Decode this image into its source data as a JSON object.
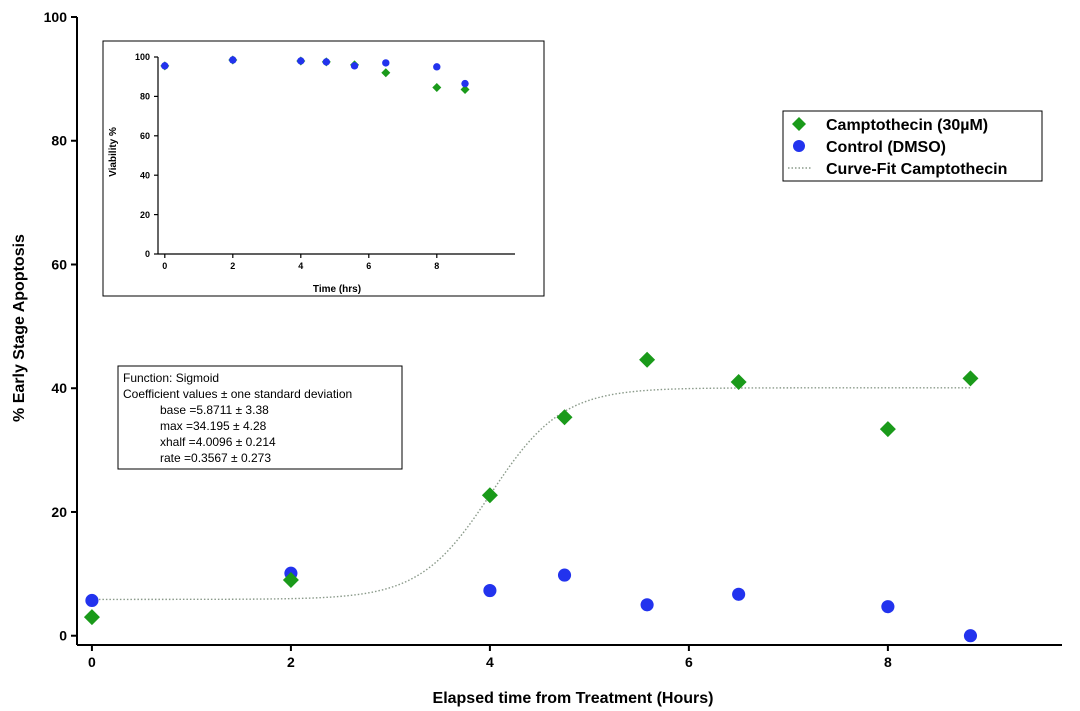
{
  "chart_data": [
    {
      "type": "scatter",
      "xlabel": "Elapsed time from Treatment (Hours)",
      "ylabel": "% Early Stage Apoptosis",
      "xlim": [
        -0.15,
        9.75
      ],
      "ylim": [
        -1.5,
        100
      ],
      "x_ticks": [
        0,
        2,
        4,
        6,
        8
      ],
      "y_ticks": [
        0,
        20,
        40,
        60,
        80,
        100
      ],
      "grid": false,
      "legend_position": "top-right",
      "series": [
        {
          "name": "Camptothecin (30µM)",
          "marker": "diamond",
          "color": "#1a9a1a",
          "x": [
            0,
            2,
            4,
            4.75,
            5.58,
            6.5,
            8,
            8.83
          ],
          "y": [
            3.0,
            9.0,
            22.7,
            35.3,
            44.6,
            41.0,
            33.4,
            41.6
          ]
        },
        {
          "name": "Control (DMSO)",
          "marker": "circle",
          "color": "#2233ee",
          "x": [
            0,
            2,
            4,
            4.75,
            5.58,
            6.5,
            8,
            8.83
          ],
          "y": [
            5.7,
            10.1,
            7.3,
            9.8,
            5.0,
            6.7,
            4.7,
            0
          ]
        },
        {
          "name": "Curve-Fit Camptothecin",
          "type": "line",
          "style": "dotted",
          "color": "#8a9a8a",
          "function": "sigmoid",
          "params": {
            "base": 5.8711,
            "max": 34.195,
            "xhalf": 4.0096,
            "rate": 0.3567
          },
          "x_range": [
            0,
            8.83
          ]
        }
      ],
      "annotation": {
        "lines": [
          "Function: Sigmoid",
          "Coefficient values ± one standard deviation",
          "base =5.8711 ± 3.38",
          "max =34.195 ± 4.28",
          "xhalf =4.0096 ± 0.214",
          "rate =0.3567 ± 0.273"
        ]
      }
    },
    {
      "type": "scatter",
      "xlabel": "Time (hrs)",
      "ylabel": "Viability %",
      "xlim": [
        -0.2,
        10.3
      ],
      "ylim": [
        0,
        100
      ],
      "x_ticks": [
        0,
        2,
        4,
        6,
        8
      ],
      "y_ticks": [
        0,
        20,
        40,
        60,
        80,
        100
      ],
      "grid": false,
      "series": [
        {
          "name": "Camptothecin (30µM)",
          "marker": "diamond",
          "color": "#1a9a1a",
          "x": [
            0,
            2,
            4,
            4.75,
            5.58,
            6.5,
            8,
            8.83
          ],
          "y": [
            95.5,
            98.5,
            98.0,
            97.5,
            96.0,
            92.0,
            84.5,
            83.5
          ]
        },
        {
          "name": "Control (DMSO)",
          "marker": "circle",
          "color": "#2233ee",
          "x": [
            0,
            2,
            4,
            4.75,
            5.58,
            6.5,
            8,
            8.83
          ],
          "y": [
            95.5,
            98.5,
            98.0,
            97.5,
            95.5,
            97.0,
            95.0,
            86.5
          ]
        }
      ]
    }
  ]
}
